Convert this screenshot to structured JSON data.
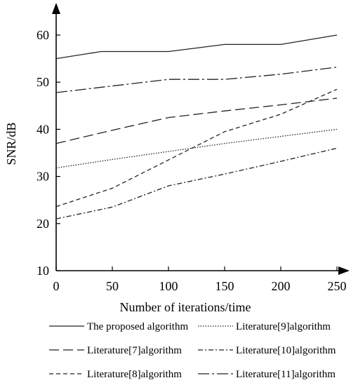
{
  "chart_data": {
    "type": "line",
    "xlabel": "Number of iterations/time",
    "ylabel": "SNR/dB",
    "xlim": [
      0,
      250
    ],
    "ylim": [
      10,
      60
    ],
    "xticks": [
      0,
      50,
      100,
      150,
      200,
      250
    ],
    "yticks": [
      10,
      20,
      30,
      40,
      50,
      60
    ],
    "grid": false,
    "legend_position": "bottom",
    "series": [
      {
        "name": "The proposed algorithm",
        "dash": "solid",
        "x": [
          0,
          40,
          100,
          150,
          200,
          250
        ],
        "y": [
          55,
          56.5,
          56.5,
          58,
          58,
          60
        ]
      },
      {
        "name": "Literature[7]algorithm",
        "dash": "longdash",
        "x": [
          0,
          50,
          100,
          150,
          200,
          250
        ],
        "y": [
          37,
          39.8,
          42.5,
          43.9,
          45.2,
          46.6
        ]
      },
      {
        "name": "Literature[8]algorithm",
        "dash": "shortdash",
        "x": [
          0,
          50,
          100,
          150,
          200,
          250
        ],
        "y": [
          23.6,
          27.5,
          33.5,
          39.5,
          43.2,
          48.5
        ]
      },
      {
        "name": "Literature[9]algorithm",
        "dash": "dotted",
        "x": [
          0,
          50,
          100,
          150,
          200,
          250
        ],
        "y": [
          31.8,
          33.6,
          35.3,
          37,
          38.5,
          40
        ]
      },
      {
        "name": "Literature[10]algorithm",
        "dash": "dashdot",
        "x": [
          0,
          50,
          100,
          150,
          200,
          250
        ],
        "y": [
          21,
          23.5,
          28,
          30.5,
          33.2,
          36
        ]
      },
      {
        "name": "Literature[11]algorithm",
        "dash": "longdashdot",
        "x": [
          0,
          50,
          100,
          150,
          200,
          250
        ],
        "y": [
          47.8,
          49.2,
          50.6,
          50.6,
          51.7,
          53.2
        ]
      }
    ]
  }
}
